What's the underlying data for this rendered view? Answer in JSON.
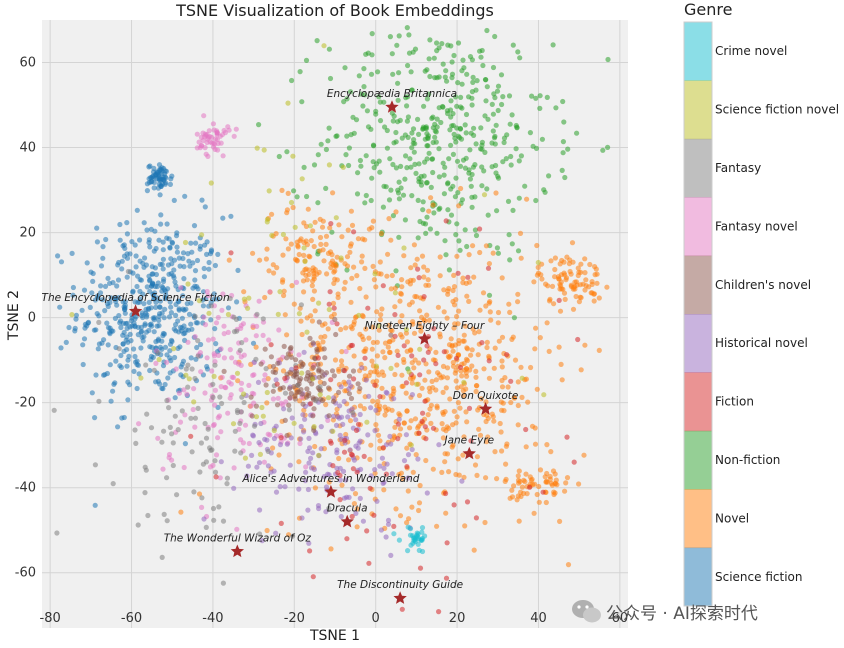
{
  "chart_data": {
    "type": "scatter",
    "title": "TSNE Visualization of Book Embeddings",
    "xlabel": "TSNE 1",
    "ylabel": "TSNE 2",
    "xlim": [
      -82,
      62
    ],
    "ylim": [
      -73,
      70
    ],
    "xticks": [
      -80,
      -60,
      -40,
      -20,
      0,
      20,
      40,
      60
    ],
    "yticks": [
      -60,
      -40,
      -20,
      0,
      20,
      40,
      60
    ],
    "grid": true,
    "legend": {
      "title": "Genre",
      "placement": "right",
      "entries": [
        {
          "name": "Crime novel",
          "color": "#17becf"
        },
        {
          "name": "Science fiction novel",
          "color": "#bcbd22"
        },
        {
          "name": "Fantasy",
          "color": "#7f7f7f"
        },
        {
          "name": "Fantasy novel",
          "color": "#e377c2"
        },
        {
          "name": "Children's novel",
          "color": "#8c564b"
        },
        {
          "name": "Historical novel",
          "color": "#9467bd"
        },
        {
          "name": "Fiction",
          "color": "#d62728"
        },
        {
          "name": "Non-fiction",
          "color": "#2ca02c"
        },
        {
          "name": "Novel",
          "color": "#ff7f0e"
        },
        {
          "name": "Science fiction",
          "color": "#1f77b4"
        }
      ]
    },
    "clusters": [
      {
        "genre": "Science fiction",
        "x": -55,
        "y": 2,
        "sx": 9,
        "sy": 11,
        "n": 480
      },
      {
        "genre": "Science fiction",
        "x": -53,
        "y": 33,
        "sx": 1.5,
        "sy": 1.5,
        "n": 60
      },
      {
        "genre": "Non-fiction",
        "x": 15,
        "y": 42,
        "sx": 14,
        "sy": 14,
        "n": 450
      },
      {
        "genre": "Novel",
        "x": 10,
        "y": -12,
        "sx": 18,
        "sy": 16,
        "n": 650
      },
      {
        "genre": "Novel",
        "x": -15,
        "y": 15,
        "sx": 7,
        "sy": 6,
        "n": 120
      },
      {
        "genre": "Novel",
        "x": 48,
        "y": 9,
        "sx": 4,
        "sy": 3,
        "n": 80
      },
      {
        "genre": "Novel",
        "x": 40,
        "y": -40,
        "sx": 4,
        "sy": 3,
        "n": 60
      },
      {
        "genre": "Fantasy novel",
        "x": -40,
        "y": 42,
        "sx": 2,
        "sy": 2,
        "n": 50
      },
      {
        "genre": "Fantasy novel",
        "x": -35,
        "y": -15,
        "sx": 10,
        "sy": 12,
        "n": 160
      },
      {
        "genre": "Historical novel",
        "x": -10,
        "y": -30,
        "sx": 12,
        "sy": 10,
        "n": 180
      },
      {
        "genre": "Children's novel",
        "x": -18,
        "y": -15,
        "sx": 6,
        "sy": 5,
        "n": 110
      },
      {
        "genre": "Fantasy",
        "x": -42,
        "y": -25,
        "sx": 12,
        "sy": 15,
        "n": 110
      },
      {
        "genre": "Fiction",
        "x": 5,
        "y": -20,
        "sx": 20,
        "sy": 20,
        "n": 110
      },
      {
        "genre": "Crime novel",
        "x": 10,
        "y": -52,
        "sx": 2,
        "sy": 1.5,
        "n": 30
      },
      {
        "genre": "Science fiction novel",
        "x": -20,
        "y": 0,
        "sx": 25,
        "sy": 25,
        "n": 80
      }
    ],
    "annotations": [
      {
        "text": "Encyclopædia Britannica",
        "x": 4,
        "y": 49.5
      },
      {
        "text": "The Encyclopedia of Science Fiction",
        "x": -59,
        "y": 1.5
      },
      {
        "text": "Nineteen Eighty – Four",
        "x": 12,
        "y": -5
      },
      {
        "text": "Don Quixote",
        "x": 27,
        "y": -21.5
      },
      {
        "text": "Jane Eyre",
        "x": 23,
        "y": -32
      },
      {
        "text": "Alice's Adventures in Wonderland",
        "x": -11,
        "y": -41
      },
      {
        "text": "Dracula",
        "x": -7,
        "y": -48
      },
      {
        "text": "The Wonderful Wizard of Oz",
        "x": -34,
        "y": -55
      },
      {
        "text": "The Discontinuity Guide",
        "x": 6,
        "y": -66
      }
    ],
    "star_color": "#a52a2a"
  },
  "watermark": "公众号 · AI探索时代"
}
